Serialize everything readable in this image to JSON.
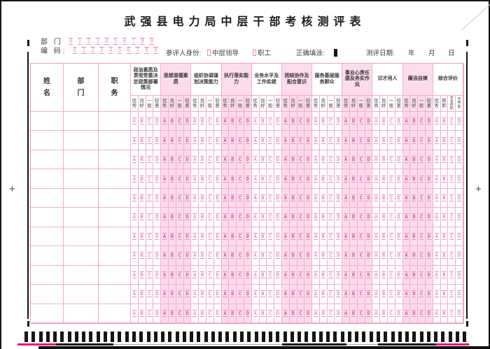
{
  "title": "武强县电力局中层干部考核测评表",
  "meta": {
    "dept_label": "部 门",
    "code_label": "编 码:",
    "digits": [
      "0",
      "1",
      "2",
      "3",
      "4",
      "5",
      "6",
      "7",
      "8",
      "9"
    ],
    "identity_label": "参评人身份:",
    "identity_options": [
      "中层领导",
      "职工"
    ],
    "correct_fill_label": "正确填涂:",
    "date_label": "测评日期:",
    "date_units": [
      "年",
      "月",
      "日"
    ]
  },
  "table": {
    "person_columns": [
      "姓名",
      "部门",
      "职务"
    ],
    "person_column_names": [
      "name",
      "department",
      "position"
    ],
    "rating_options": [
      "优秀",
      "良好",
      "一般",
      "较差"
    ],
    "overall_options": [
      "优秀",
      "称职",
      "基本称职",
      "不称职"
    ],
    "bubble_letters": [
      "A",
      "B",
      "C",
      "D"
    ],
    "data_row_count": 11,
    "groups": [
      {
        "name": "政治素质及贯彻党委决定政策部署情况",
        "tinted": false
      },
      {
        "name": "思想道德素质",
        "tinted": true
      },
      {
        "name": "组织协调谋划决策能力",
        "tinted": false
      },
      {
        "name": "执行落实能力",
        "tinted": true
      },
      {
        "name": "业务水平及工作实绩",
        "tinted": false
      },
      {
        "name": "团结协作及配合意识",
        "tinted": true
      },
      {
        "name": "服务基层服务群众",
        "tinted": false
      },
      {
        "name": "事业心责任感及务实作风",
        "tinted": true
      },
      {
        "name": "识才用人",
        "tinted": false
      },
      {
        "name": "廉洁自律",
        "tinted": true
      },
      {
        "name": "综合评价",
        "tinted": false
      }
    ]
  },
  "marks": {
    "plus": "+",
    "timing_bar_count": 62
  },
  "colors": {
    "line_pink": "#f09cc6",
    "tint_pink": "#fcdcec",
    "bubble_pink": "#e05da6",
    "digit_pink": "#f08ec6",
    "accent_magenta": "#e8157d",
    "mark_black": "#141414"
  }
}
